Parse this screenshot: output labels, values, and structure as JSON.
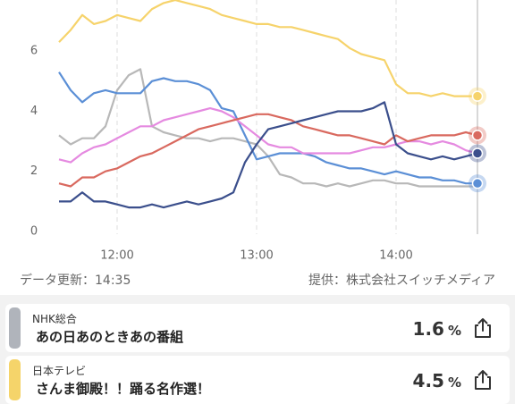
{
  "chart_data": {
    "type": "line",
    "x": [
      695,
      700,
      705,
      710,
      715,
      720,
      725,
      730,
      735,
      740,
      745,
      750,
      755,
      760,
      765,
      770,
      775,
      780,
      785,
      790,
      795,
      800,
      805,
      810,
      815,
      820,
      825,
      830,
      835,
      840,
      845,
      850,
      855,
      860,
      865,
      870,
      875
    ],
    "xlim": [
      695,
      875
    ],
    "xticks": [
      {
        "value": 720,
        "label": "12:00"
      },
      {
        "value": 780,
        "label": "13:00"
      },
      {
        "value": 840,
        "label": "14:00"
      }
    ],
    "ylim": [
      0,
      7.7
    ],
    "yticks": [
      0,
      2,
      4,
      6
    ],
    "series": [
      {
        "color": "#f6d36b",
        "end_marker": true,
        "values": [
          6.3,
          6.7,
          7.2,
          6.9,
          7.0,
          7.2,
          7.1,
          7.0,
          7.4,
          7.6,
          7.7,
          7.6,
          7.5,
          7.4,
          7.2,
          7.1,
          7.0,
          6.9,
          6.9,
          6.8,
          6.8,
          6.7,
          6.6,
          6.5,
          6.4,
          6.1,
          5.9,
          5.8,
          5.7,
          4.9,
          4.6,
          4.6,
          4.5,
          4.6,
          4.5,
          4.5,
          4.5
        ]
      },
      {
        "color": "#b8b8b8",
        "end_marker": false,
        "values": [
          3.2,
          2.9,
          3.1,
          3.1,
          3.5,
          4.7,
          5.2,
          5.4,
          3.5,
          3.3,
          3.2,
          3.1,
          3.1,
          3.0,
          3.1,
          3.1,
          3.0,
          2.9,
          2.5,
          1.9,
          1.8,
          1.6,
          1.6,
          1.5,
          1.6,
          1.5,
          1.6,
          1.7,
          1.7,
          1.6,
          1.6,
          1.5,
          1.5,
          1.5,
          1.5,
          1.5,
          1.5
        ]
      },
      {
        "color": "#5b8fd6",
        "end_marker": true,
        "values": [
          5.3,
          4.7,
          4.3,
          4.6,
          4.7,
          4.6,
          4.6,
          4.6,
          5.0,
          5.1,
          5.0,
          5.0,
          4.9,
          4.7,
          4.1,
          4.0,
          3.2,
          2.4,
          2.5,
          2.6,
          2.6,
          2.6,
          2.5,
          2.3,
          2.2,
          2.1,
          2.1,
          2.0,
          1.9,
          2.0,
          1.9,
          1.8,
          1.8,
          1.7,
          1.7,
          1.6,
          1.6
        ]
      },
      {
        "color": "#e58ae0",
        "end_marker": false,
        "values": [
          2.4,
          2.3,
          2.6,
          2.8,
          2.9,
          3.1,
          3.3,
          3.5,
          3.5,
          3.7,
          3.8,
          3.9,
          4.0,
          4.1,
          4.0,
          3.8,
          3.5,
          3.2,
          2.9,
          2.8,
          2.8,
          2.6,
          2.6,
          2.6,
          2.6,
          2.6,
          2.7,
          2.8,
          2.8,
          2.9,
          3.0,
          3.0,
          2.9,
          3.0,
          2.9,
          2.7,
          2.6
        ]
      },
      {
        "color": "#d9695f",
        "end_marker": true,
        "values": [
          1.6,
          1.5,
          1.8,
          1.8,
          2.0,
          2.1,
          2.3,
          2.5,
          2.6,
          2.8,
          3.0,
          3.2,
          3.4,
          3.5,
          3.6,
          3.7,
          3.8,
          3.9,
          3.9,
          3.8,
          3.7,
          3.5,
          3.4,
          3.3,
          3.2,
          3.2,
          3.1,
          3.0,
          2.9,
          3.2,
          3.0,
          3.1,
          3.2,
          3.2,
          3.2,
          3.3,
          3.2
        ]
      },
      {
        "color": "#3b4f8c",
        "end_marker": true,
        "values": [
          1.0,
          1.0,
          1.3,
          1.0,
          1.0,
          0.9,
          0.8,
          0.8,
          0.9,
          0.8,
          0.9,
          1.0,
          0.9,
          1.0,
          1.1,
          1.3,
          2.3,
          2.9,
          3.4,
          3.5,
          3.6,
          3.7,
          3.8,
          3.9,
          4.0,
          4.0,
          4.0,
          4.1,
          4.3,
          2.9,
          2.6,
          2.5,
          2.4,
          2.5,
          2.4,
          2.5,
          2.6
        ]
      }
    ]
  },
  "footer": {
    "updated": "データ更新：14:35",
    "provider": "提供：株式会社スイッチメディア"
  },
  "programs": [
    {
      "channel": "NHK総合",
      "title": "あの日あのときあの番組",
      "rating": 1.6,
      "unit": "%",
      "color": "#b0b4bb"
    },
    {
      "channel": "日本テレビ",
      "title": "さんま御殿！！踊る名作選！",
      "rating": 4.5,
      "unit": "%",
      "color": "#f5d46a"
    }
  ]
}
